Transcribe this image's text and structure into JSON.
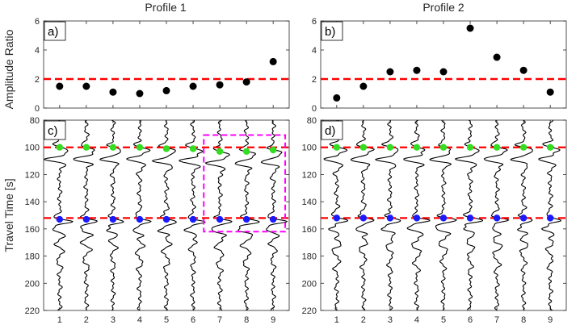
{
  "chart_data": [
    {
      "id": "a",
      "type": "scatter",
      "title": "Profile 1",
      "panel_label": "a)",
      "ylabel": "Amplitude Ratio",
      "x": [
        1,
        2,
        3,
        4,
        5,
        6,
        7,
        8,
        9
      ],
      "values": [
        1.5,
        1.5,
        1.1,
        1.0,
        1.2,
        1.5,
        1.6,
        1.8,
        3.2
      ],
      "ylim": [
        0,
        6
      ],
      "yticks": [
        "0",
        "2",
        "4",
        "6"
      ],
      "threshold": 2,
      "xticks_visible": false
    },
    {
      "id": "b",
      "type": "scatter",
      "title": "Profile 2",
      "panel_label": "b)",
      "x": [
        1,
        2,
        3,
        4,
        5,
        6,
        7,
        8,
        9
      ],
      "values": [
        0.7,
        1.5,
        2.5,
        2.6,
        2.5,
        5.5,
        3.5,
        2.6,
        1.1
      ],
      "ylim": [
        0,
        6
      ],
      "yticks": [
        "0",
        "2",
        "4",
        "6"
      ],
      "threshold": 2,
      "xticks_visible": false
    },
    {
      "id": "c",
      "type": "line",
      "panel_label": "c)",
      "ylabel": "Travel Time [s]",
      "traces": [
        1,
        2,
        3,
        4,
        5,
        6,
        7,
        8,
        9
      ],
      "ylim": [
        80,
        220
      ],
      "yticks": [
        "80",
        "100",
        "120",
        "140",
        "160",
        "180",
        "200",
        "220"
      ],
      "xticks": [
        "1",
        "2",
        "3",
        "4",
        "5",
        "6",
        "7",
        "8",
        "9"
      ],
      "ref_lines": [
        100,
        152
      ],
      "first_arrivals": [
        100,
        100,
        100,
        100,
        101,
        101,
        103,
        103,
        102
      ],
      "second_arrivals": [
        153,
        153,
        153,
        153,
        153,
        153,
        153,
        153,
        153
      ],
      "highlight_box": {
        "traces": [
          7,
          9
        ],
        "time": [
          91,
          162
        ]
      }
    },
    {
      "id": "d",
      "type": "line",
      "panel_label": "d)",
      "traces": [
        1,
        2,
        3,
        4,
        5,
        6,
        7,
        8,
        9
      ],
      "ylim": [
        80,
        220
      ],
      "yticks": [
        "80",
        "100",
        "120",
        "140",
        "160",
        "180",
        "200",
        "220"
      ],
      "xticks": [
        "1",
        "2",
        "3",
        "4",
        "5",
        "6",
        "7",
        "8",
        "9"
      ],
      "ref_lines": [
        100,
        152
      ],
      "first_arrivals": [
        100,
        100,
        100,
        100,
        100,
        100,
        100,
        100,
        100
      ],
      "second_arrivals": [
        152,
        152,
        152,
        152,
        152,
        152,
        152,
        152,
        152
      ]
    }
  ],
  "colors": {
    "axis": "#262626",
    "marker": "#000000",
    "threshold": "#ff0000",
    "first_pick": "#33dd22",
    "second_pick": "#1a1aff",
    "box": "#ff00ff",
    "trace": "#000000"
  }
}
